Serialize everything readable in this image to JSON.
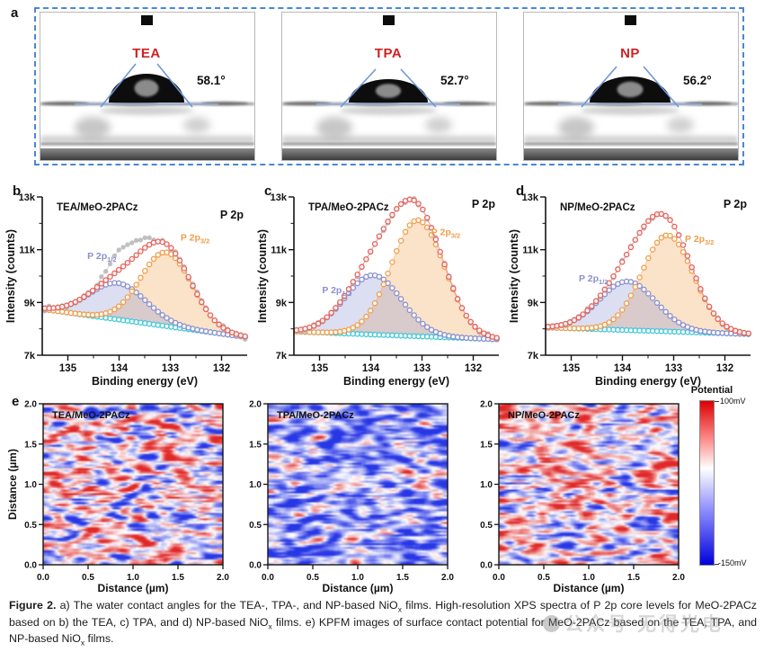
{
  "panel_a": {
    "label": "a",
    "border_color": "#4a86d8",
    "name_color": "#cf2222",
    "images": [
      {
        "name": "TEA",
        "angle": "58.1°",
        "drop_rx": 42,
        "drop_ry": 32
      },
      {
        "name": "TPA",
        "angle": "52.7°",
        "drop_rx": 44,
        "drop_ry": 26
      },
      {
        "name": "NP",
        "angle": "56.2°",
        "drop_rx": 45,
        "drop_ry": 29
      }
    ]
  },
  "chart_data": [
    {
      "type": "line",
      "id": "xps_tea",
      "panel_letter": "b",
      "title": "TEA/MeO-2PACz",
      "corner_label": "P 2p",
      "corner_y": 40,
      "xlabel": "Binding energy (eV)",
      "ylabel": "Intensity (counts)",
      "xlim": [
        135.5,
        131.5
      ],
      "ylim": [
        7000,
        13000
      ],
      "xticks": [
        135,
        134,
        133,
        132
      ],
      "xminor": [
        134.5,
        133.5,
        132.5
      ],
      "yticks": [
        7000,
        9000,
        11000,
        13000
      ],
      "ytick_labels": [
        "7k",
        "9k",
        "11k",
        "13k"
      ],
      "yminor": [
        8000,
        10000,
        12000
      ],
      "background": {
        "left": 8750,
        "right": 7680,
        "color": "#3fc8d8"
      },
      "envelope_color": "#e8625a",
      "raw_color": "#b3b3b3",
      "raw": {
        "seed": 7,
        "noise": 120,
        "extra": {
          "amp": 750,
          "center": 133.88,
          "sigma": 0.3
        }
      },
      "components": [
        {
          "label": "P 2p",
          "label_sub": "3/2",
          "color": "#f29e4a",
          "fill": "rgba(243,162,80,0.30)",
          "center": 133.08,
          "amp": 2800,
          "sigma": 0.5,
          "label_x": 132.8,
          "label_y": 11350
        },
        {
          "label": "P 2p",
          "label_sub": "1/2",
          "color": "#8a90cf",
          "fill": "rgba(140,145,207,0.30)",
          "center": 134.02,
          "amp": 1380,
          "sigma": 0.55,
          "label_x": 134.62,
          "label_y": 10650
        }
      ]
    },
    {
      "type": "line",
      "id": "xps_tpa",
      "panel_letter": "c",
      "title": "TPA/MeO-2PACz",
      "corner_label": "P 2p",
      "corner_y": 28,
      "xlabel": "Binding energy (eV)",
      "ylabel": "Intensity (counts)",
      "xlim": [
        135.5,
        131.5
      ],
      "ylim": [
        7000,
        13000
      ],
      "xticks": [
        135,
        134,
        133,
        132
      ],
      "xminor": [
        134.5,
        133.5,
        132.5
      ],
      "yticks": [
        7000,
        9000,
        11000,
        13000
      ],
      "ytick_labels": [
        "7k",
        "9k",
        "11k",
        "13k"
      ],
      "yminor": [
        8000,
        10000,
        12000
      ],
      "background": {
        "left": 7900,
        "right": 7600,
        "color": "#3fc8d8"
      },
      "envelope_color": "#e8625a",
      "raw_color": "#b3b3b3",
      "raw": {
        "seed": 13,
        "noise": 100,
        "extra": null
      },
      "components": [
        {
          "label": "P 2p",
          "label_sub": "3/2",
          "color": "#f29e4a",
          "fill": "rgba(243,162,80,0.30)",
          "center": 133.08,
          "amp": 4400,
          "sigma": 0.52,
          "label_x": 132.82,
          "label_y": 11550
        },
        {
          "label": "P 2p",
          "label_sub": "1/2",
          "color": "#8a90cf",
          "fill": "rgba(140,145,207,0.30)",
          "center": 133.95,
          "amp": 2250,
          "sigma": 0.55,
          "label_x": 134.95,
          "label_y": 9350
        }
      ]
    },
    {
      "type": "line",
      "id": "xps_np",
      "panel_letter": "d",
      "title": "NP/MeO-2PACz",
      "corner_label": "P 2p",
      "corner_y": 28,
      "xlabel": "Binding energy (eV)",
      "ylabel": "Intensity (counts)",
      "xlim": [
        135.5,
        131.5
      ],
      "ylim": [
        7000,
        13000
      ],
      "xticks": [
        135,
        134,
        133,
        132
      ],
      "xminor": [
        134.5,
        133.5,
        132.5
      ],
      "yticks": [
        7000,
        9000,
        11000,
        13000
      ],
      "ytick_labels": [
        "7k",
        "9k",
        "11k",
        "13k"
      ],
      "yminor": [
        8000,
        10000,
        12000
      ],
      "background": {
        "left": 8050,
        "right": 7800,
        "color": "#3fc8d8"
      },
      "envelope_color": "#e8625a",
      "raw_color": "#b3b3b3",
      "raw": {
        "seed": 29,
        "noise": 110,
        "extra": null
      },
      "components": [
        {
          "label": "P 2p",
          "label_sub": "3/2",
          "color": "#f29e4a",
          "fill": "rgba(243,162,80,0.30)",
          "center": 133.12,
          "amp": 3650,
          "sigma": 0.5,
          "label_x": 132.78,
          "label_y": 11300
        },
        {
          "label": "P 2p",
          "label_sub": "1/2",
          "color": "#8a90cf",
          "fill": "rgba(140,145,207,0.30)",
          "center": 133.9,
          "amp": 1850,
          "sigma": 0.55,
          "label_x": 134.85,
          "label_y": 9800
        }
      ]
    },
    {
      "type": "heatmap",
      "id": "kpfm_tea",
      "panel_letter": "e",
      "title": "TEA/MeO-2PACz",
      "xlabel": "Distance (µm)",
      "ylabel": "Distance (µm)",
      "x_ticks": [
        "0.0",
        "0.5",
        "1.0",
        "1.5",
        "2.0"
      ],
      "y_ticks": [
        "0.0",
        "0.5",
        "1.0",
        "1.5",
        "2.0"
      ],
      "x_range": [
        0,
        2
      ],
      "y_range": [
        0,
        2
      ],
      "value_label": "Potential (mV)",
      "value_range": [
        -150,
        100
      ],
      "seed": 11,
      "bias": 0.02,
      "contrast": 1.05
    },
    {
      "type": "heatmap",
      "id": "kpfm_tpa",
      "panel_letter": "",
      "title": "TPA/MeO-2PACz",
      "xlabel": "Distance (µm)",
      "ylabel": "",
      "x_ticks": [
        "0.0",
        "0.5",
        "1.0",
        "1.5",
        "2.0"
      ],
      "y_ticks": [
        "0.0",
        "0.5",
        "1.0",
        "1.5",
        "2.0"
      ],
      "x_range": [
        0,
        2
      ],
      "y_range": [
        0,
        2
      ],
      "value_label": "Potential (mV)",
      "value_range": [
        -150,
        100
      ],
      "seed": 23,
      "bias": -0.45,
      "contrast": 0.8
    },
    {
      "type": "heatmap",
      "id": "kpfm_np",
      "panel_letter": "",
      "title": "NP/MeO-2PACz",
      "xlabel": "Distance (µm)",
      "ylabel": "",
      "x_ticks": [
        "0.0",
        "0.5",
        "1.0",
        "1.5",
        "2.0"
      ],
      "y_ticks": [
        "0.0",
        "0.5",
        "1.0",
        "1.5",
        "2.0"
      ],
      "x_range": [
        0,
        2
      ],
      "y_range": [
        0,
        2
      ],
      "value_label": "Potential (mV)",
      "value_range": [
        -150,
        100
      ],
      "seed": 41,
      "bias": 0.05,
      "contrast": 0.95
    }
  ],
  "colorbar": {
    "title": "Potential",
    "top_label": "100mV",
    "bottom_label": "-150mV",
    "top_color": "#dc0000",
    "mid_color": "#ffffff",
    "bottom_color": "#0000dc"
  },
  "caption": {
    "segments": [
      {
        "text": "Figure 2.",
        "bold": true
      },
      {
        "text": " a) The water contact angles for the TEA-, TPA-, and NP-based NiO"
      },
      {
        "text": "x",
        "sub": true
      },
      {
        "text": " films. High-resolution XPS spectra of P 2p core levels for MeO-2PACz based on b) the TEA, c) TPA, and d) NP-based NiO"
      },
      {
        "text": "x",
        "sub": true
      },
      {
        "text": " films. e) KPFM images of surface contact potential for MeO-2PACz based on the TEA, TPA, and NP-based NiO"
      },
      {
        "text": "x",
        "sub": true
      },
      {
        "text": " films."
      }
    ]
  },
  "watermark": {
    "text": "公众号 无得光电"
  }
}
